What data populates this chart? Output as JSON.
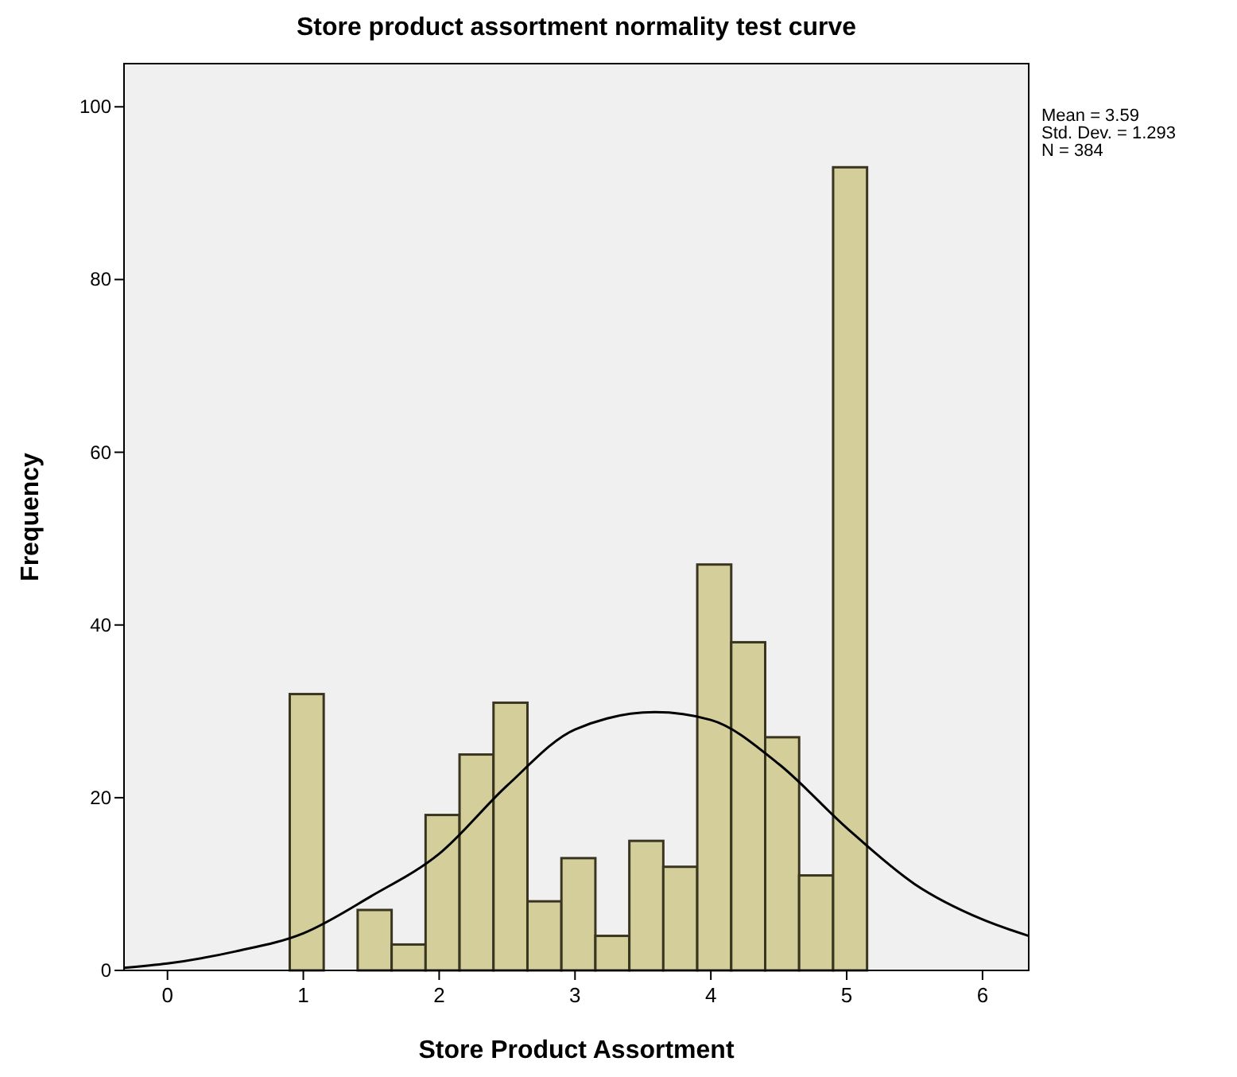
{
  "chart_data": {
    "type": "histogram",
    "title": "Store product assortment normality test curve",
    "xlabel": "Store Product Assortment",
    "ylabel": "Frequency",
    "bins": [
      0.9,
      1.15,
      1.4,
      1.65,
      1.9,
      2.15,
      2.4,
      2.65,
      2.9,
      3.15,
      3.4,
      3.65,
      3.9,
      4.15,
      4.4,
      4.65,
      4.9,
      5.15
    ],
    "series": [
      {
        "color": "#d4cf9a",
        "values": [
          32,
          0,
          7,
          3,
          18,
          25,
          31,
          8,
          13,
          4,
          15,
          12,
          47,
          38,
          27,
          11,
          93
        ]
      },
      {
        "type": "line",
        "color": "#000000",
        "x": [
          -0.32,
          0,
          0.5,
          1,
          1.5,
          2,
          2.5,
          3,
          3.59,
          4,
          4.5,
          5,
          5.5,
          6,
          6.34
        ],
        "values": [
          0.3,
          0.8,
          2.2,
          4.3,
          8.6,
          13.5,
          21.4,
          27.9,
          29.9,
          29,
          23.9,
          16.5,
          10,
          5.9,
          4
        ]
      }
    ],
    "xlim": [
      -0.32,
      6.34
    ],
    "xticks": [
      0,
      1,
      2,
      3,
      4,
      5,
      6
    ],
    "ylim": [
      0,
      105
    ],
    "yticks": [
      0,
      20,
      40,
      60,
      80,
      100
    ],
    "grid": false,
    "marker": "none",
    "line_style": "solid",
    "annotations": [
      "Mean = 3.59",
      "Std. Dev. = 1.293",
      "N = 384"
    ]
  }
}
